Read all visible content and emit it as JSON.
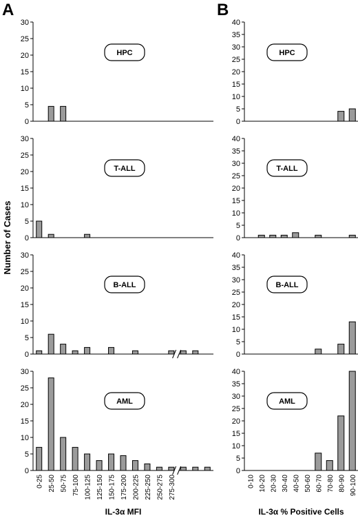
{
  "figure": {
    "panel_letters": [
      "A",
      "B"
    ],
    "y_axis_label": "Number of Cases"
  },
  "colors": {
    "bar_fill": "#9b9b9b",
    "bar_stroke": "#000000",
    "axis": "#000000"
  },
  "chart_data": [
    {
      "id": "A-HPC",
      "type": "bar",
      "label": "HPC",
      "categories": [
        "0-25",
        "25-50",
        "50-75",
        "75-100",
        "100-125",
        "125-150",
        "150-175",
        "175-200",
        "200-225",
        "225-250",
        "250-275",
        "275-300",
        "b1",
        "b2",
        "b3"
      ],
      "values": [
        0,
        4.5,
        4.5,
        0,
        0,
        0,
        0,
        0,
        0,
        0,
        0,
        0,
        0,
        0,
        0
      ],
      "ylim": [
        0,
        30
      ],
      "yticks": [
        0,
        5,
        10,
        15,
        20,
        25,
        30
      ],
      "axis_break": false
    },
    {
      "id": "A-TALL",
      "type": "bar",
      "label": "T-ALL",
      "categories": [
        "0-25",
        "25-50",
        "50-75",
        "75-100",
        "100-125",
        "125-150",
        "150-175",
        "175-200",
        "200-225",
        "225-250",
        "250-275",
        "275-300",
        "b1",
        "b2",
        "b3"
      ],
      "values": [
        5,
        1,
        0,
        0,
        1,
        0,
        0,
        0,
        0,
        0,
        0,
        0,
        0,
        0,
        0
      ],
      "ylim": [
        0,
        30
      ],
      "yticks": [
        0,
        5,
        10,
        15,
        20,
        25,
        30
      ],
      "axis_break": false
    },
    {
      "id": "A-BALL",
      "type": "bar",
      "label": "B-ALL",
      "categories": [
        "0-25",
        "25-50",
        "50-75",
        "75-100",
        "100-125",
        "125-150",
        "150-175",
        "175-200",
        "200-225",
        "225-250",
        "250-275",
        "275-300",
        "b1",
        "b2",
        "b3"
      ],
      "values": [
        1,
        6,
        3,
        1,
        2,
        0,
        2,
        0,
        1,
        0,
        0,
        1,
        1,
        1,
        0
      ],
      "ylim": [
        0,
        30
      ],
      "yticks": [
        0,
        5,
        10,
        15,
        20,
        25,
        30
      ],
      "axis_break": true
    },
    {
      "id": "A-AML",
      "type": "bar",
      "label": "AML",
      "categories": [
        "0-25",
        "25-50",
        "50-75",
        "75-100",
        "100-125",
        "125-150",
        "150-175",
        "175-200",
        "200-225",
        "225-250",
        "250-275",
        "275-300",
        "b1",
        "b2",
        "b3"
      ],
      "values": [
        7,
        28,
        10,
        7,
        5,
        3,
        5,
        4.5,
        3,
        2,
        1,
        1,
        1,
        1,
        1
      ],
      "ylim": [
        0,
        30
      ],
      "yticks": [
        0,
        5,
        10,
        15,
        20,
        25,
        30
      ],
      "axis_break": true,
      "tick_labels": [
        "0-25",
        "25-50",
        "50-75",
        "75-100",
        "100-125",
        "125-150",
        "150-175",
        "175-200",
        "200-225",
        "225-250",
        "250-275",
        "275-300"
      ],
      "xlabel": "IL-3α MFI"
    },
    {
      "id": "B-HPC",
      "type": "bar",
      "label": "HPC",
      "categories": [
        "0-10",
        "10-20",
        "20-30",
        "30-40",
        "40-50",
        "50-60",
        "60-70",
        "70-80",
        "80-90",
        "90-100"
      ],
      "values": [
        0,
        0,
        0,
        0,
        0,
        0,
        0,
        0,
        4,
        5
      ],
      "ylim": [
        0,
        40
      ],
      "yticks": [
        0,
        5,
        10,
        15,
        20,
        25,
        30,
        35,
        40
      ],
      "axis_break": false
    },
    {
      "id": "B-TALL",
      "type": "bar",
      "label": "T-ALL",
      "categories": [
        "0-10",
        "10-20",
        "20-30",
        "30-40",
        "40-50",
        "50-60",
        "60-70",
        "70-80",
        "80-90",
        "90-100"
      ],
      "values": [
        0,
        1,
        1,
        1,
        2,
        0,
        1,
        0,
        0,
        1
      ],
      "ylim": [
        0,
        40
      ],
      "yticks": [
        0,
        5,
        10,
        15,
        20,
        25,
        30,
        35,
        40
      ],
      "axis_break": false
    },
    {
      "id": "B-BALL",
      "type": "bar",
      "label": "B-ALL",
      "categories": [
        "0-10",
        "10-20",
        "20-30",
        "30-40",
        "40-50",
        "50-60",
        "60-70",
        "70-80",
        "80-90",
        "90-100"
      ],
      "values": [
        0,
        0,
        0,
        0,
        0,
        0,
        2,
        0,
        4,
        13
      ],
      "ylim": [
        0,
        40
      ],
      "yticks": [
        0,
        5,
        10,
        15,
        20,
        25,
        30,
        35,
        40
      ],
      "axis_break": false
    },
    {
      "id": "B-AML",
      "type": "bar",
      "label": "AML",
      "categories": [
        "0-10",
        "10-20",
        "20-30",
        "30-40",
        "40-50",
        "50-60",
        "60-70",
        "70-80",
        "80-90",
        "90-100"
      ],
      "values": [
        0,
        0,
        0,
        0,
        0,
        0,
        7,
        4,
        22,
        40
      ],
      "ylim": [
        0,
        40
      ],
      "yticks": [
        0,
        5,
        10,
        15,
        20,
        25,
        30,
        35,
        40
      ],
      "axis_break": false,
      "tick_labels": [
        "0-10",
        "10-20",
        "20-30",
        "30-40",
        "40-50",
        "50-60",
        "60-70",
        "70-80",
        "80-90",
        "90-100"
      ],
      "xlabel": "IL-3α % Positive Cells"
    }
  ]
}
